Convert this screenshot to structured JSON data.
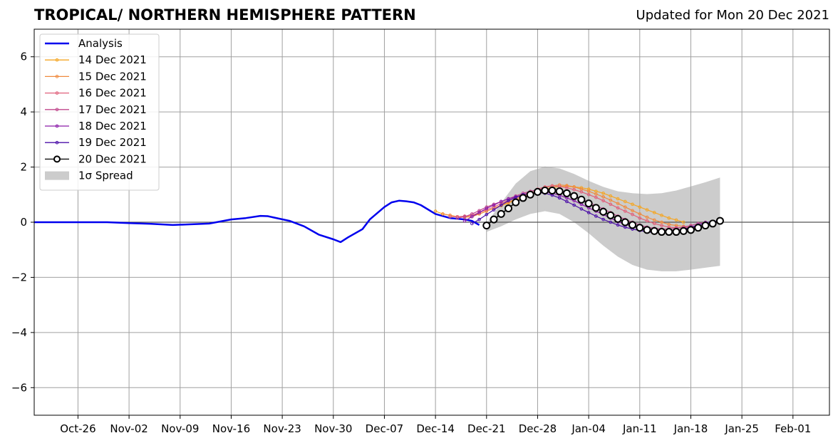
{
  "header": {
    "title": "TROPICAL/ NORTHERN HEMISPHERE PATTERN",
    "updated": "Updated for Mon 20 Dec 2021"
  },
  "chart_data": {
    "type": "line",
    "title": "TROPICAL/ NORTHERN HEMISPHERE PATTERN",
    "subtitle": "Updated for Mon 20 Dec 2021",
    "xlabel": "",
    "ylabel": "",
    "x_start": "2021-10-20",
    "xlim": [
      "2021-10-20",
      "2022-02-06"
    ],
    "ylim": [
      -7,
      7
    ],
    "grid": true,
    "zero_line": true,
    "legend_position": "top-left",
    "x_ticks": [
      "Oct-26",
      "Nov-02",
      "Nov-09",
      "Nov-16",
      "Nov-23",
      "Nov-30",
      "Dec-07",
      "Dec-14",
      "Dec-21",
      "Dec-28",
      "Jan-04",
      "Jan-11",
      "Jan-18",
      "Jan-25",
      "Feb-01"
    ],
    "y_ticks": [
      6,
      4,
      2,
      0,
      -2,
      -4,
      -6
    ],
    "y_tick_labels": [
      "6",
      "4",
      "2",
      "0",
      "−2",
      "−4",
      "−6"
    ],
    "series": [
      {
        "name": "Analysis",
        "color": "#0000ee",
        "x": [
          "2021-10-20",
          "2021-10-25",
          "2021-10-30",
          "2021-11-02",
          "2021-11-05",
          "2021-11-08",
          "2021-11-10",
          "2021-11-13",
          "2021-11-16",
          "2021-11-18",
          "2021-11-20",
          "2021-11-21",
          "2021-11-24",
          "2021-11-26",
          "2021-11-28",
          "2021-11-30",
          "2021-12-01",
          "2021-12-02",
          "2021-12-04",
          "2021-12-05",
          "2021-12-07",
          "2021-12-08",
          "2021-12-09",
          "2021-12-10",
          "2021-12-11",
          "2021-12-12",
          "2021-12-14",
          "2021-12-16",
          "2021-12-18",
          "2021-12-19",
          "2021-12-20"
        ],
        "values": [
          0,
          0,
          0,
          -0.03,
          -0.06,
          -0.1,
          -0.08,
          -0.05,
          0.1,
          0.15,
          0.23,
          0.22,
          0.05,
          -0.15,
          -0.45,
          -0.62,
          -0.72,
          -0.55,
          -0.25,
          0.1,
          0.55,
          0.72,
          0.78,
          0.76,
          0.72,
          0.62,
          0.3,
          0.15,
          0.1,
          0.05,
          -0.1
        ]
      },
      {
        "name": "14 Dec 2021",
        "color": "#f5a623",
        "x": [
          "2021-12-14",
          "2021-12-15",
          "2021-12-16",
          "2021-12-17",
          "2021-12-18",
          "2021-12-19",
          "2021-12-20",
          "2021-12-21",
          "2021-12-22",
          "2021-12-23",
          "2021-12-24",
          "2021-12-25",
          "2021-12-26",
          "2021-12-27",
          "2021-12-28",
          "2021-12-29",
          "2021-12-30",
          "2021-12-31",
          "2022-01-01",
          "2022-01-02",
          "2022-01-03",
          "2022-01-04",
          "2022-01-05",
          "2022-01-06",
          "2022-01-07",
          "2022-01-08",
          "2022-01-09",
          "2022-01-10",
          "2022-01-11",
          "2022-01-12",
          "2022-01-13",
          "2022-01-14",
          "2022-01-15",
          "2022-01-16",
          "2022-01-17"
        ],
        "values": [
          0.4,
          0.3,
          0.25,
          0.2,
          0.2,
          0.25,
          0.3,
          0.4,
          0.5,
          0.6,
          0.7,
          0.8,
          0.9,
          1.0,
          1.1,
          1.2,
          1.25,
          1.3,
          1.3,
          1.28,
          1.25,
          1.2,
          1.12,
          1.05,
          0.95,
          0.85,
          0.75,
          0.65,
          0.55,
          0.45,
          0.35,
          0.25,
          0.15,
          0.08,
          0.0
        ]
      },
      {
        "name": "15 Dec 2021",
        "color": "#f08a3e",
        "x": [
          "2021-12-15",
          "2021-12-16",
          "2021-12-17",
          "2021-12-18",
          "2021-12-19",
          "2021-12-20",
          "2021-12-21",
          "2021-12-22",
          "2021-12-23",
          "2021-12-24",
          "2021-12-25",
          "2021-12-26",
          "2021-12-27",
          "2021-12-28",
          "2021-12-29",
          "2021-12-30",
          "2021-12-31",
          "2022-01-01",
          "2022-01-02",
          "2022-01-03",
          "2022-01-04",
          "2022-01-05",
          "2022-01-06",
          "2022-01-07",
          "2022-01-08",
          "2022-01-09",
          "2022-01-10",
          "2022-01-11",
          "2022-01-12",
          "2022-01-13",
          "2022-01-14",
          "2022-01-15",
          "2022-01-16",
          "2022-01-17",
          "2022-01-18"
        ],
        "values": [
          0.3,
          0.25,
          0.2,
          0.18,
          0.2,
          0.3,
          0.4,
          0.5,
          0.62,
          0.72,
          0.85,
          0.95,
          1.05,
          1.15,
          1.25,
          1.32,
          1.35,
          1.33,
          1.28,
          1.2,
          1.12,
          1.02,
          0.92,
          0.8,
          0.68,
          0.55,
          0.42,
          0.3,
          0.18,
          0.08,
          0.0,
          -0.08,
          -0.12,
          -0.15,
          -0.15
        ]
      },
      {
        "name": "16 Dec 2021",
        "color": "#e0607a",
        "x": [
          "2021-12-16",
          "2021-12-17",
          "2021-12-18",
          "2021-12-19",
          "2021-12-20",
          "2021-12-21",
          "2021-12-22",
          "2021-12-23",
          "2021-12-24",
          "2021-12-25",
          "2021-12-26",
          "2021-12-27",
          "2021-12-28",
          "2021-12-29",
          "2021-12-30",
          "2021-12-31",
          "2022-01-01",
          "2022-01-02",
          "2022-01-03",
          "2022-01-04",
          "2022-01-05",
          "2022-01-06",
          "2022-01-07",
          "2022-01-08",
          "2022-01-09",
          "2022-01-10",
          "2022-01-11",
          "2022-01-12",
          "2022-01-13",
          "2022-01-14",
          "2022-01-15",
          "2022-01-16",
          "2022-01-17",
          "2022-01-18",
          "2022-01-19"
        ],
        "values": [
          0.2,
          0.2,
          0.22,
          0.25,
          0.35,
          0.45,
          0.55,
          0.68,
          0.8,
          0.9,
          1.0,
          1.1,
          1.2,
          1.28,
          1.32,
          1.3,
          1.25,
          1.18,
          1.1,
          1.0,
          0.9,
          0.78,
          0.65,
          0.52,
          0.4,
          0.28,
          0.15,
          0.05,
          -0.05,
          -0.12,
          -0.18,
          -0.2,
          -0.2,
          -0.18,
          -0.15
        ]
      },
      {
        "name": "17 Dec 2021",
        "color": "#c0468c",
        "x": [
          "2021-12-17",
          "2021-12-18",
          "2021-12-19",
          "2021-12-20",
          "2021-12-21",
          "2021-12-22",
          "2021-12-23",
          "2021-12-24",
          "2021-12-25",
          "2021-12-26",
          "2021-12-27",
          "2021-12-28",
          "2021-12-29",
          "2021-12-30",
          "2021-12-31",
          "2022-01-01",
          "2022-01-02",
          "2022-01-03",
          "2022-01-04",
          "2022-01-05",
          "2022-01-06",
          "2022-01-07",
          "2022-01-08",
          "2022-01-09",
          "2022-01-10",
          "2022-01-11",
          "2022-01-12",
          "2022-01-13",
          "2022-01-14",
          "2022-01-15",
          "2022-01-16",
          "2022-01-17",
          "2022-01-18",
          "2022-01-19",
          "2022-01-20"
        ],
        "values": [
          0.15,
          0.2,
          0.3,
          0.42,
          0.55,
          0.65,
          0.75,
          0.85,
          0.95,
          1.05,
          1.12,
          1.18,
          1.2,
          1.18,
          1.12,
          1.05,
          0.95,
          0.85,
          0.72,
          0.6,
          0.48,
          0.35,
          0.22,
          0.1,
          0.0,
          -0.1,
          -0.18,
          -0.22,
          -0.25,
          -0.25,
          -0.22,
          -0.18,
          -0.12,
          -0.05,
          0.0
        ]
      },
      {
        "name": "18 Dec 2021",
        "color": "#8a1aa8",
        "x": [
          "2021-12-18",
          "2021-12-19",
          "2021-12-20",
          "2021-12-21",
          "2021-12-22",
          "2021-12-23",
          "2021-12-24",
          "2021-12-25",
          "2021-12-26",
          "2021-12-27",
          "2021-12-28",
          "2021-12-29",
          "2021-12-30",
          "2021-12-31",
          "2022-01-01",
          "2022-01-02",
          "2022-01-03",
          "2022-01-04",
          "2022-01-05",
          "2022-01-06",
          "2022-01-07",
          "2022-01-08",
          "2022-01-09",
          "2022-01-10",
          "2022-01-11",
          "2022-01-12",
          "2022-01-13",
          "2022-01-14",
          "2022-01-15",
          "2022-01-16",
          "2022-01-17",
          "2022-01-18",
          "2022-01-19",
          "2022-01-20",
          "2022-01-21"
        ],
        "values": [
          0.05,
          0.2,
          0.35,
          0.5,
          0.62,
          0.75,
          0.85,
          0.92,
          1.0,
          1.05,
          1.1,
          1.1,
          1.05,
          0.98,
          0.88,
          0.78,
          0.65,
          0.52,
          0.4,
          0.28,
          0.15,
          0.02,
          -0.08,
          -0.15,
          -0.22,
          -0.28,
          -0.32,
          -0.35,
          -0.35,
          -0.32,
          -0.28,
          -0.22,
          -0.15,
          -0.08,
          0.0
        ]
      },
      {
        "name": "19 Dec 2021",
        "color": "#4b0fa8",
        "x": [
          "2021-12-19",
          "2021-12-20",
          "2021-12-21",
          "2021-12-22",
          "2021-12-23",
          "2021-12-24",
          "2021-12-25",
          "2021-12-26",
          "2021-12-27",
          "2021-12-28",
          "2021-12-29",
          "2021-12-30",
          "2021-12-31",
          "2022-01-01",
          "2022-01-02",
          "2022-01-03",
          "2022-01-04",
          "2022-01-05",
          "2022-01-06",
          "2022-01-07",
          "2022-01-08",
          "2022-01-09",
          "2022-01-10",
          "2022-01-11",
          "2022-01-12",
          "2022-01-13",
          "2022-01-14",
          "2022-01-15",
          "2022-01-16",
          "2022-01-17",
          "2022-01-18",
          "2022-01-19",
          "2022-01-20",
          "2022-01-21",
          "2022-01-22"
        ],
        "values": [
          -0.05,
          0.1,
          0.28,
          0.45,
          0.62,
          0.78,
          0.9,
          1.0,
          1.05,
          1.08,
          1.05,
          0.98,
          0.88,
          0.75,
          0.62,
          0.48,
          0.35,
          0.22,
          0.1,
          0.0,
          -0.1,
          -0.18,
          -0.25,
          -0.3,
          -0.35,
          -0.38,
          -0.38,
          -0.35,
          -0.3,
          -0.25,
          -0.18,
          -0.1,
          -0.02,
          0.03,
          0.05
        ]
      },
      {
        "name": "20 Dec 2021",
        "color": "#000000",
        "x": [
          "2021-12-21",
          "2021-12-22",
          "2021-12-23",
          "2021-12-24",
          "2021-12-25",
          "2021-12-26",
          "2021-12-27",
          "2021-12-28",
          "2021-12-29",
          "2021-12-30",
          "2021-12-31",
          "2022-01-01",
          "2022-01-02",
          "2022-01-03",
          "2022-01-04",
          "2022-01-05",
          "2022-01-06",
          "2022-01-07",
          "2022-01-08",
          "2022-01-09",
          "2022-01-10",
          "2022-01-11",
          "2022-01-12",
          "2022-01-13",
          "2022-01-14",
          "2022-01-15",
          "2022-01-16",
          "2022-01-17",
          "2022-01-18",
          "2022-01-19",
          "2022-01-20",
          "2022-01-21",
          "2022-01-22"
        ],
        "values": [
          -0.12,
          0.1,
          0.3,
          0.5,
          0.72,
          0.88,
          1.0,
          1.1,
          1.15,
          1.15,
          1.12,
          1.05,
          0.95,
          0.82,
          0.68,
          0.52,
          0.38,
          0.25,
          0.12,
          0.0,
          -0.1,
          -0.2,
          -0.28,
          -0.32,
          -0.35,
          -0.35,
          -0.35,
          -0.32,
          -0.28,
          -0.2,
          -0.12,
          -0.05,
          0.05
        ]
      }
    ],
    "spread": {
      "name": "1σ Spread",
      "color": "#cccccc",
      "x": [
        "2021-12-21",
        "2021-12-23",
        "2021-12-25",
        "2021-12-27",
        "2021-12-29",
        "2021-12-31",
        "2022-01-02",
        "2022-01-04",
        "2022-01-06",
        "2022-01-08",
        "2022-01-10",
        "2022-01-12",
        "2022-01-14",
        "2022-01-16",
        "2022-01-18",
        "2022-01-20",
        "2022-01-22"
      ],
      "upper": [
        -0.05,
        0.7,
        1.4,
        1.85,
        2.02,
        1.95,
        1.75,
        1.5,
        1.28,
        1.12,
        1.05,
        1.02,
        1.05,
        1.15,
        1.3,
        1.45,
        1.62
      ],
      "lower": [
        -0.35,
        -0.15,
        0.1,
        0.3,
        0.4,
        0.3,
        0.0,
        -0.4,
        -0.85,
        -1.25,
        -1.55,
        -1.72,
        -1.78,
        -1.78,
        -1.72,
        -1.65,
        -1.58
      ]
    }
  }
}
